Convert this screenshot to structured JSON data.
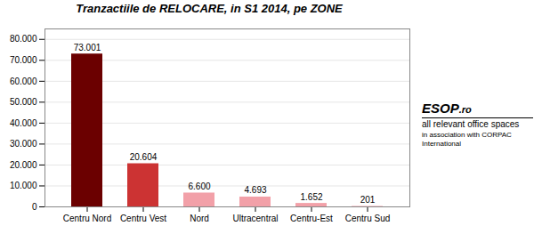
{
  "chart_data": {
    "type": "bar",
    "title": "Tranzactiile de RELOCARE, in S1 2014, pe ZONE",
    "categories": [
      "Centru Nord",
      "Centru Vest",
      "Nord",
      "Ultracentral",
      "Centru-Est",
      "Centru Sud"
    ],
    "values": [
      73001,
      20604,
      6600,
      4693,
      1652,
      201
    ],
    "value_labels": [
      "73.001",
      "20.604",
      "6.600",
      "4.693",
      "1.652",
      "201"
    ],
    "data_labels": true,
    "colors": [
      "#6B0000",
      "#CC3333",
      "#F2A0A8",
      "#F2A0A8",
      "#F2A0A8",
      "#F2A0A8"
    ],
    "ylim": [
      0,
      85000
    ],
    "yticks": [
      0,
      {
        "value": 10000,
        "label": "10.000"
      },
      {
        "value": 20000,
        "label": "20.000"
      },
      {
        "value": 30000,
        "label": "30.000"
      },
      {
        "value": 40000,
        "label": "40.000"
      },
      {
        "value": 50000,
        "label": "50.000"
      },
      {
        "value": 60000,
        "label": "60.000"
      },
      {
        "value": 70000,
        "label": "70.000"
      },
      {
        "value": 80000,
        "label": "80.000"
      }
    ],
    "grid": true,
    "annotations": [
      "ESOP",
      ".ro",
      "all relevant office spaces",
      "in association with CORPAC International"
    ]
  }
}
